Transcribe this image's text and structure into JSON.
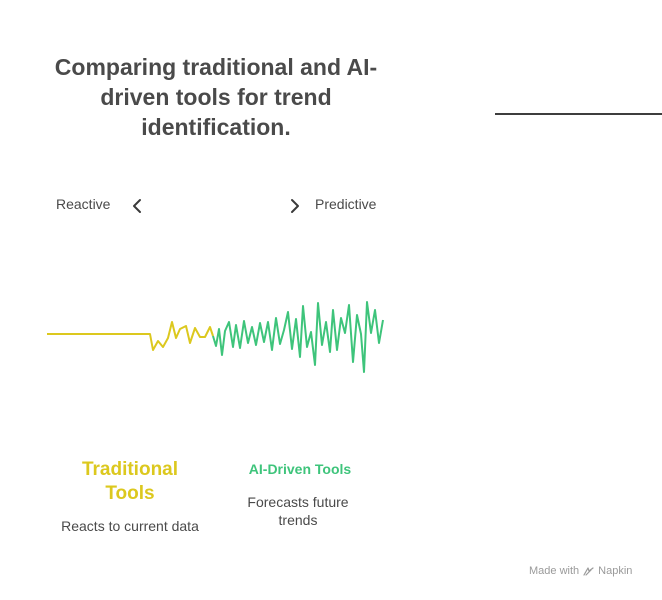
{
  "title": "Comparing traditional and AI-driven tools for trend identification.",
  "scale": {
    "left_label": "Reactive",
    "right_label": "Predictive"
  },
  "columns": [
    {
      "title": "Traditional Tools",
      "description": "Reacts to current data",
      "color": "#dcc81e"
    },
    {
      "title": "AI-Driven Tools",
      "description": "Forecasts future trends",
      "color": "#3ec47b"
    }
  ],
  "footer": {
    "made_with": "Made with",
    "brand": "Napkin",
    "brand_icon": "napkin-logo-icon"
  },
  "colors": {
    "title": "#4a4a4a",
    "traditional": "#dcc81e",
    "ai": "#3ec47b"
  }
}
